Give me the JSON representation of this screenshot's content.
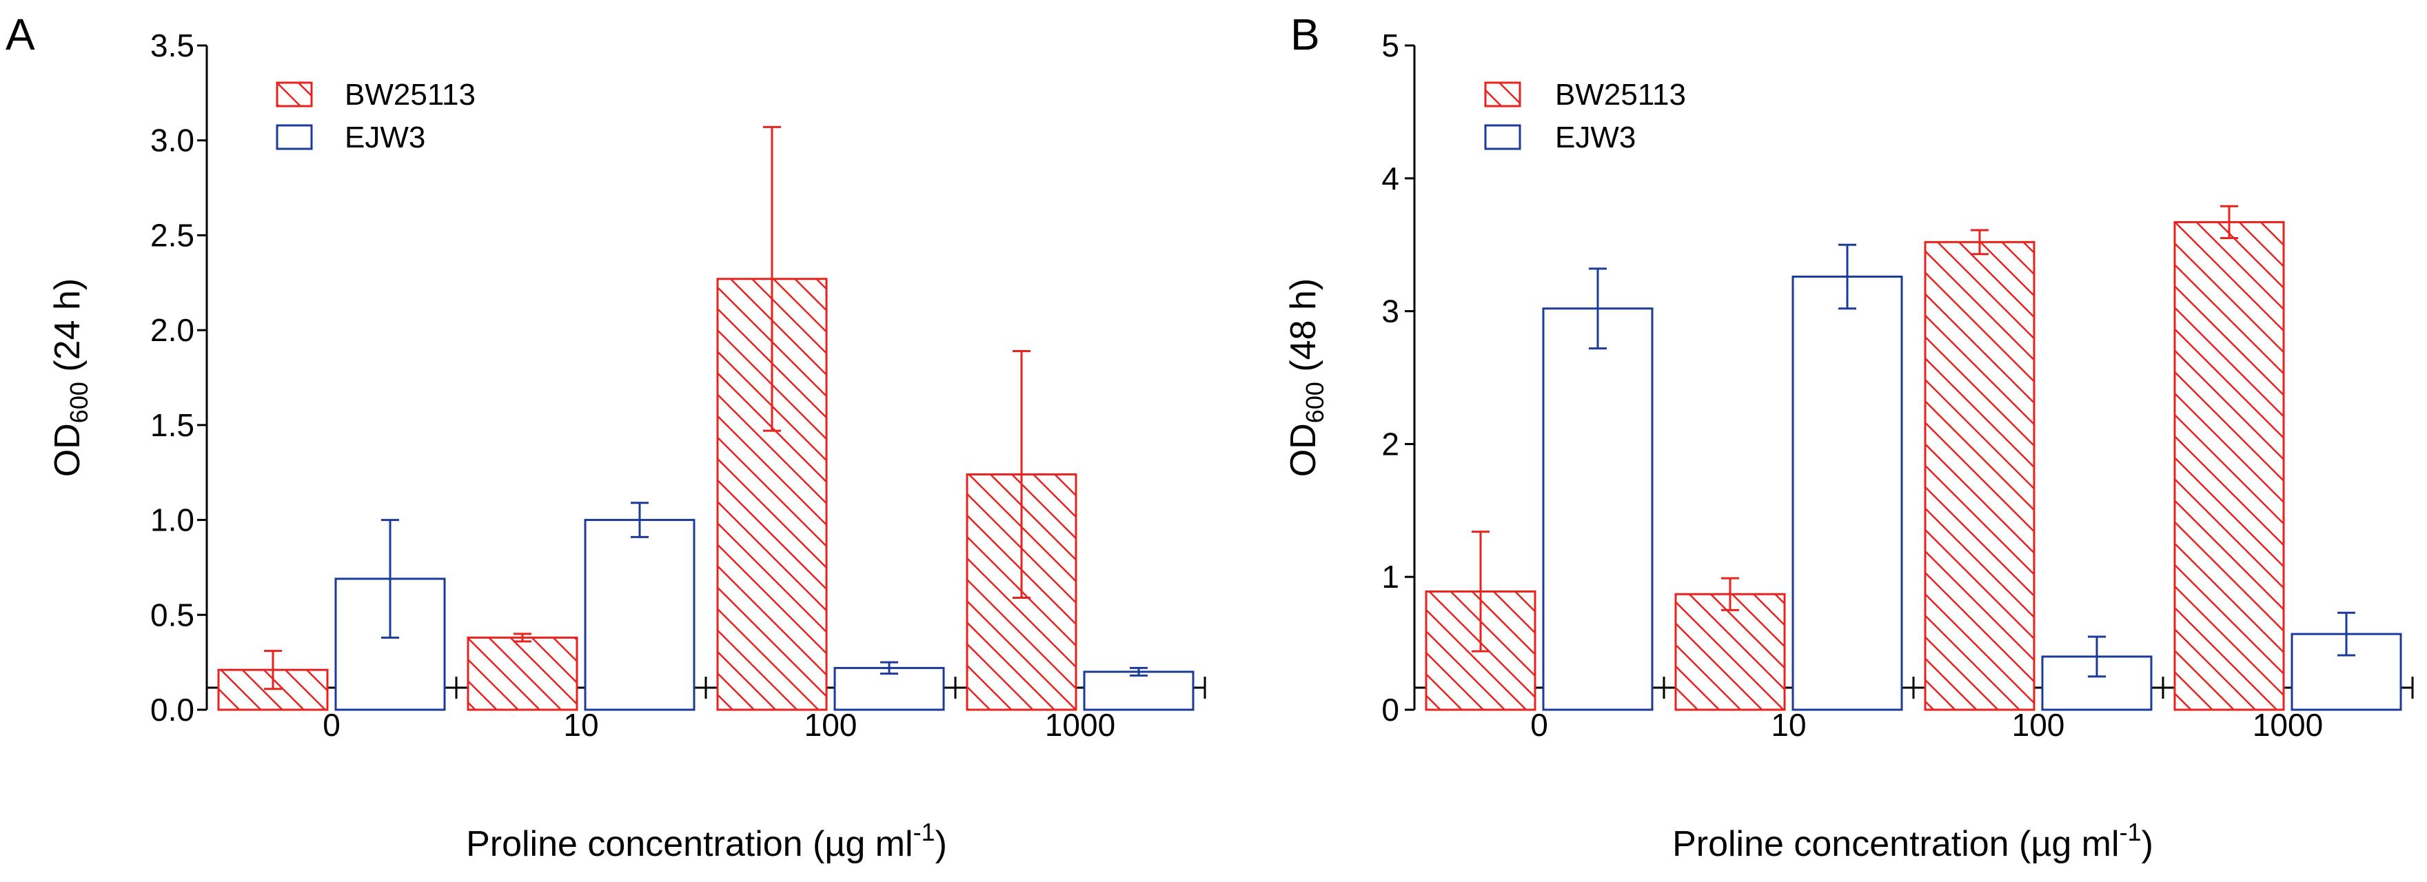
{
  "colors": {
    "series_a": "#e8231f",
    "series_b": "#1c3a97"
  },
  "chart_data": [
    {
      "type": "bar",
      "panel": "A",
      "title": "",
      "xlabel": "Proline concentration (µg ml-1)",
      "xlabel_main": "Proline concentration (µg ml",
      "xlabel_sup": "-1",
      "xlabel_close": ")",
      "ylabel": "OD600 (24 h)",
      "ylabel_main": "OD",
      "ylabel_sub": "600",
      "ylabel_suffix": " (24 h)",
      "ylim": [
        0,
        3.5
      ],
      "yticks": [
        0,
        0.5,
        1.0,
        1.5,
        2.0,
        2.5,
        3.0,
        3.5
      ],
      "ytick_labels": [
        "0.0",
        "0.5",
        "1.0",
        "1.5",
        "2.0",
        "2.5",
        "3.0",
        "3.5"
      ],
      "categories": [
        "0",
        "10",
        "100",
        "1000"
      ],
      "legend_position": "top-left",
      "series": [
        {
          "name": "BW25113",
          "style": "hatched",
          "color": "#e8231f",
          "values": [
            0.21,
            0.38,
            2.27,
            1.24
          ],
          "errors": [
            0.1,
            0.02,
            0.8,
            0.65
          ]
        },
        {
          "name": "EJW3",
          "style": "outline",
          "color": "#1c3a97",
          "values": [
            0.69,
            1.0,
            0.22,
            0.2
          ],
          "errors": [
            0.31,
            0.09,
            0.03,
            0.02
          ]
        }
      ]
    },
    {
      "type": "bar",
      "panel": "B",
      "title": "",
      "xlabel": "Proline concentration (µg ml-1)",
      "xlabel_main": "Proline concentration (µg ml",
      "xlabel_sup": "-1",
      "xlabel_close": ")",
      "ylabel": "OD600 (48 h)",
      "ylabel_main": "OD",
      "ylabel_sub": "600",
      "ylabel_suffix": " (48 h)",
      "ylim": [
        0,
        5
      ],
      "yticks": [
        0,
        1,
        2,
        3,
        4,
        5
      ],
      "ytick_labels": [
        "0",
        "1",
        "2",
        "3",
        "4",
        "5"
      ],
      "categories": [
        "0",
        "10",
        "100",
        "1000"
      ],
      "legend_position": "top-left",
      "series": [
        {
          "name": "BW25113",
          "style": "hatched",
          "color": "#e8231f",
          "values": [
            0.89,
            0.87,
            3.52,
            3.67
          ],
          "errors": [
            0.45,
            0.12,
            0.09,
            0.12
          ]
        },
        {
          "name": "EJW3",
          "style": "outline",
          "color": "#1c3a97",
          "values": [
            3.02,
            3.26,
            0.4,
            0.57
          ],
          "errors": [
            0.3,
            0.24,
            0.15,
            0.16
          ]
        }
      ]
    }
  ]
}
